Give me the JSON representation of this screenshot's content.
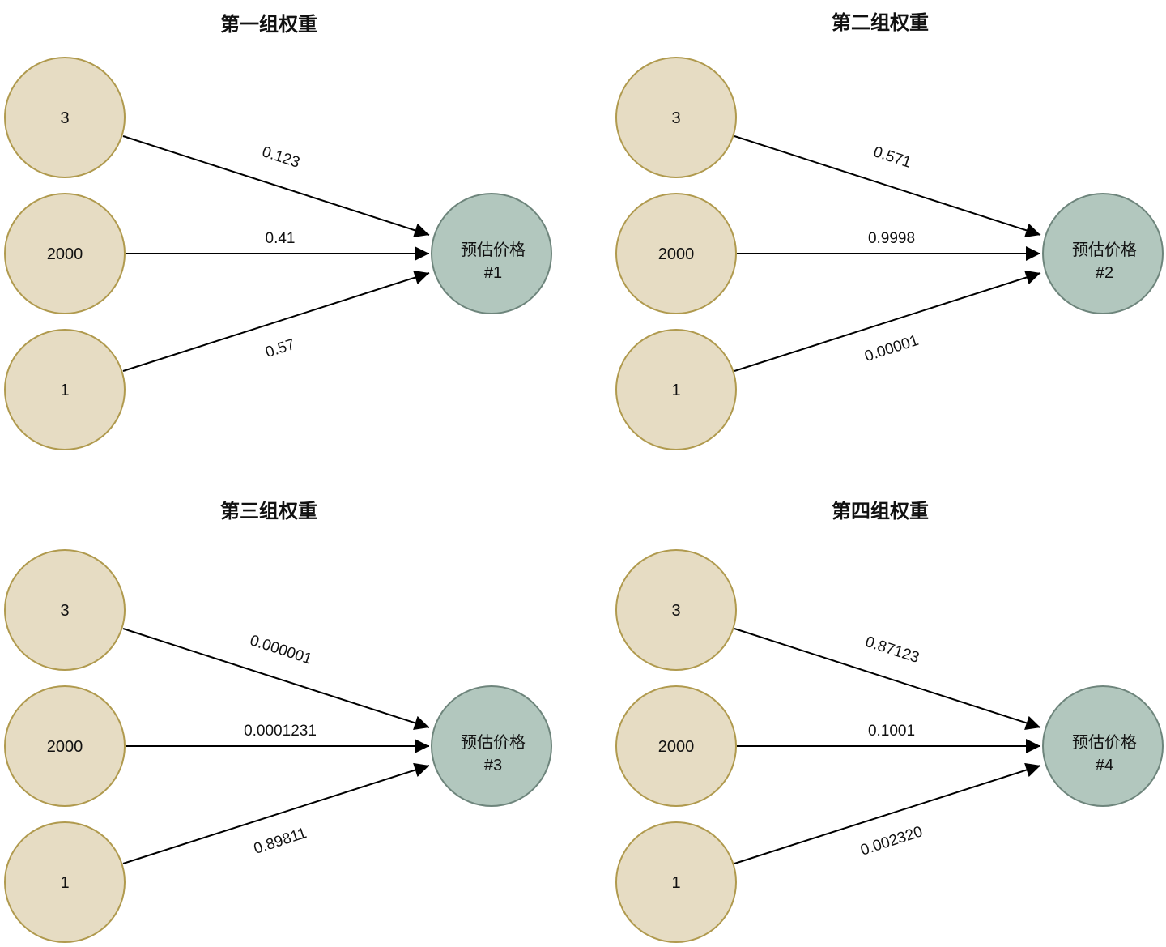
{
  "colors": {
    "input_fill": "#e6dcc3",
    "input_stroke": "#b09a4e",
    "output_fill": "#b2c7be",
    "output_stroke": "#6e857c",
    "edge": "#000000"
  },
  "panels": [
    {
      "title": "第一组权重",
      "inputs": [
        "3",
        "2000",
        "1"
      ],
      "output": {
        "line1": "预估价格",
        "line2": "#1"
      },
      "weights": [
        "0.123",
        "0.41",
        "0.57"
      ]
    },
    {
      "title": "第二组权重",
      "inputs": [
        "3",
        "2000",
        "1"
      ],
      "output": {
        "line1": "预估价格",
        "line2": "#2"
      },
      "weights": [
        "0.571",
        "0.9998",
        "0.00001"
      ]
    },
    {
      "title": "第三组权重",
      "inputs": [
        "3",
        "2000",
        "1"
      ],
      "output": {
        "line1": "预估价格",
        "line2": "#3"
      },
      "weights": [
        "0.000001",
        "0.0001231",
        "0.89811"
      ]
    },
    {
      "title": "第四组权重",
      "inputs": [
        "3",
        "2000",
        "1"
      ],
      "output": {
        "line1": "预估价格",
        "line2": "#4"
      },
      "weights": [
        "0.87123",
        "0.1001",
        "0.002320"
      ]
    }
  ]
}
